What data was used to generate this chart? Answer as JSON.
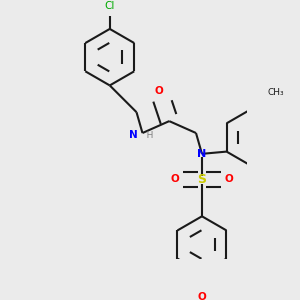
{
  "bg_color": "#ebebeb",
  "bond_color": "#1a1a1a",
  "bond_width": 1.5,
  "atom_colors": {
    "C": "#1a1a1a",
    "N": "#0000ff",
    "O": "#ff0000",
    "S": "#cccc00",
    "Cl": "#00aa00",
    "H": "#808080"
  },
  "figsize": [
    3.0,
    3.0
  ],
  "dpi": 100
}
